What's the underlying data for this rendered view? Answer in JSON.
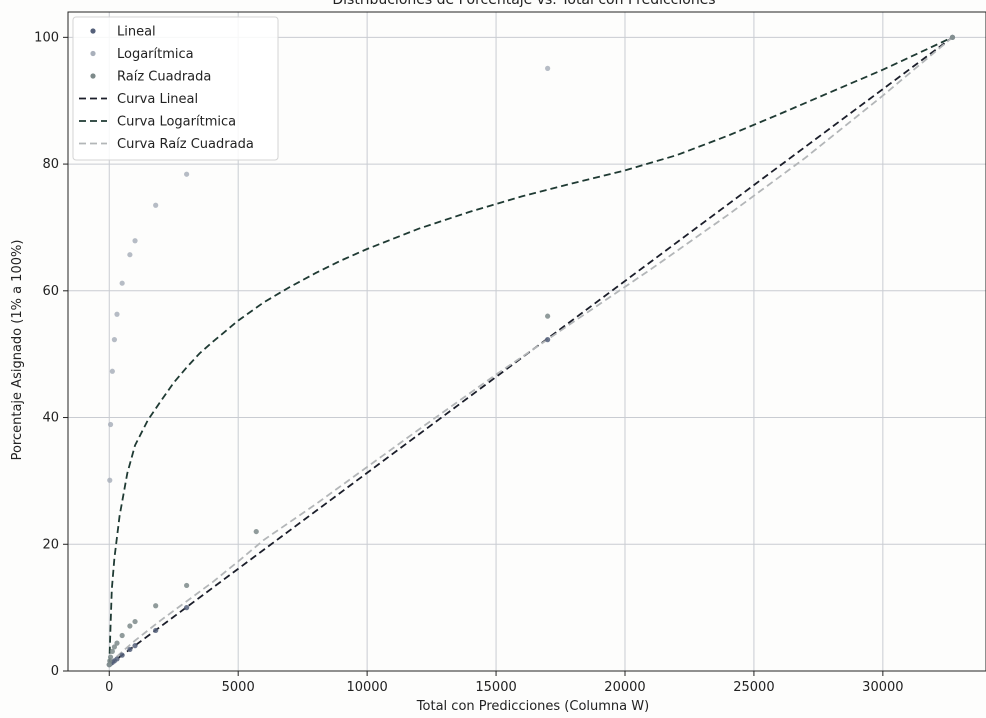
{
  "chart_data": {
    "type": "scatter",
    "title": "Distribuciones de Porcentaje vs. Total con Predicciones",
    "xlabel": "Total con Predicciones (Columna W)",
    "ylabel": "Porcentaje Asignado (1% a 100%)",
    "xlim": [
      -1600,
      34000
    ],
    "ylim": [
      0,
      104
    ],
    "xticks": [
      0,
      5000,
      10000,
      15000,
      20000,
      25000,
      30000
    ],
    "yticks": [
      0,
      20,
      40,
      60,
      80,
      100
    ],
    "grid": true,
    "legend_position": "top-left",
    "series": [
      {
        "name": "Lineal",
        "kind": "scatter",
        "color": "#55607a",
        "x": [
          0,
          20,
          50,
          120,
          200,
          300,
          500,
          800,
          1000,
          1800,
          3000,
          17000,
          32700
        ],
        "y": [
          1.0,
          1.06,
          1.15,
          1.36,
          1.6,
          1.9,
          2.5,
          3.4,
          4.0,
          6.4,
          10.0,
          52.3,
          100
        ]
      },
      {
        "name": "Logarítmica",
        "kind": "scatter",
        "color": "#a9b0bb",
        "x": [
          0,
          20,
          50,
          120,
          200,
          300,
          500,
          800,
          1000,
          1800,
          3000,
          17000,
          32700
        ],
        "y": [
          1.0,
          30.1,
          38.9,
          47.3,
          52.3,
          56.3,
          61.2,
          65.7,
          67.9,
          73.5,
          78.4,
          95.1,
          100
        ]
      },
      {
        "name": "Raíz Cuadrada",
        "kind": "scatter",
        "color": "#7d8a8a",
        "x": [
          0,
          20,
          50,
          120,
          200,
          300,
          500,
          800,
          1000,
          1800,
          3000,
          5700,
          17000,
          32700
        ],
        "y": [
          1.0,
          1.6,
          2.2,
          3.1,
          3.8,
          4.4,
          5.6,
          7.1,
          7.8,
          10.3,
          13.5,
          22.0,
          56.0,
          100
        ]
      },
      {
        "name": "Curva Lineal",
        "kind": "line",
        "color": "#1b1e2a",
        "dash": "dashed",
        "x": [
          0,
          32700
        ],
        "y": [
          1,
          100
        ]
      },
      {
        "name": "Curva Logarítmica",
        "kind": "line",
        "color": "#1f3a33",
        "dash": "dashed",
        "x": [
          0,
          50,
          100,
          200,
          400,
          700,
          1000,
          1500,
          2000,
          2500,
          3000,
          3500,
          4000,
          5000,
          6000,
          7000,
          8000,
          9000,
          10000,
          12000,
          14000,
          16000,
          18000,
          20000,
          22000,
          24000,
          26000,
          28000,
          30000,
          32700
        ],
        "y": [
          1,
          6.9,
          12.9,
          17.8,
          24.5,
          31.2,
          35.6,
          39.6,
          42.6,
          45.5,
          47.9,
          50.1,
          51.9,
          55.3,
          58.2,
          60.6,
          62.8,
          64.8,
          66.6,
          69.8,
          72.5,
          74.9,
          77.0,
          79.0,
          81.4,
          84.5,
          87.9,
          91.4,
          94.9,
          100
        ]
      },
      {
        "name": "Curva Raíz Cuadrada",
        "kind": "line",
        "color": "#b3b6b8",
        "dash": "dashed",
        "x": [
          0,
          100,
          300,
          600,
          1000,
          1500,
          2000,
          3000,
          4000,
          5000,
          6000,
          8000,
          10000,
          12000,
          15000,
          18000,
          21000,
          24000,
          27000,
          30000,
          32700
        ],
        "y": [
          1,
          1.5,
          2.3,
          3.4,
          4.8,
          6.4,
          8.0,
          11.0,
          14.0,
          17.3,
          20.7,
          26.3,
          32.2,
          38.1,
          46.8,
          55.1,
          63.4,
          72.0,
          81.0,
          90.8,
          100
        ]
      }
    ]
  }
}
